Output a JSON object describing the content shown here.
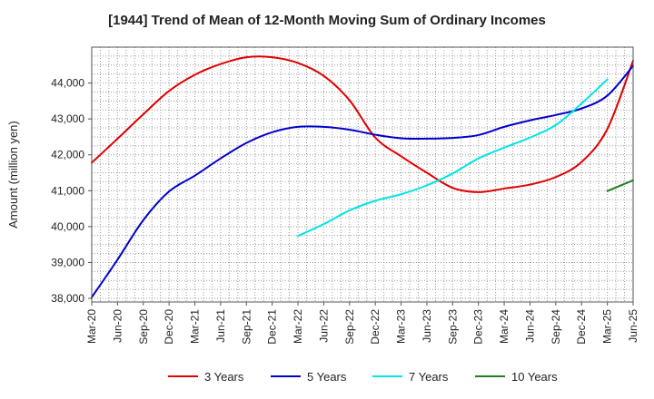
{
  "chart_data": {
    "type": "line",
    "title": "[1944]  Trend of Mean of 12-Month Moving Sum of Ordinary Incomes",
    "xlabel": "",
    "ylabel": "Amount (million yen)",
    "ylim": [
      37900,
      45000
    ],
    "yticks": [
      38000,
      39000,
      40000,
      41000,
      42000,
      43000,
      44000
    ],
    "ytick_labels": [
      "38,000",
      "39,000",
      "40,000",
      "41,000",
      "42,000",
      "43,000",
      "44,000"
    ],
    "x_categories": [
      "Mar-20",
      "Jun-20",
      "Sep-20",
      "Dec-20",
      "Mar-21",
      "Jun-21",
      "Sep-21",
      "Dec-21",
      "Mar-22",
      "Jun-22",
      "Sep-22",
      "Dec-22",
      "Mar-23",
      "Jun-23",
      "Sep-23",
      "Dec-23",
      "Mar-24",
      "Jun-24",
      "Sep-24",
      "Dec-24",
      "Mar-25",
      "Jun-25"
    ],
    "grid": true,
    "legend_position": "bottom",
    "series": [
      {
        "name": "3 Years",
        "color": "#e00000",
        "start_index": 0,
        "values": [
          41780,
          42450,
          43130,
          43780,
          44230,
          44530,
          44720,
          44720,
          44560,
          44200,
          43520,
          42480,
          41960,
          41500,
          41080,
          40960,
          41060,
          41170,
          41380,
          41800,
          42720,
          44620
        ]
      },
      {
        "name": "5 Years",
        "color": "#0000cc",
        "start_index": 0,
        "values": [
          38030,
          39080,
          40180,
          40980,
          41420,
          41900,
          42330,
          42630,
          42780,
          42780,
          42700,
          42560,
          42460,
          42450,
          42470,
          42550,
          42780,
          42960,
          43110,
          43290,
          43650,
          44480
        ]
      },
      {
        "name": "7 Years",
        "color": "#00e5e5",
        "start_index": 8,
        "values": [
          39740,
          40070,
          40450,
          40720,
          40900,
          41150,
          41480,
          41900,
          42200,
          42480,
          42830,
          43430,
          44100
        ]
      },
      {
        "name": "10 Years",
        "color": "#208020",
        "start_index": 20,
        "values": [
          40990,
          41290
        ]
      }
    ]
  }
}
